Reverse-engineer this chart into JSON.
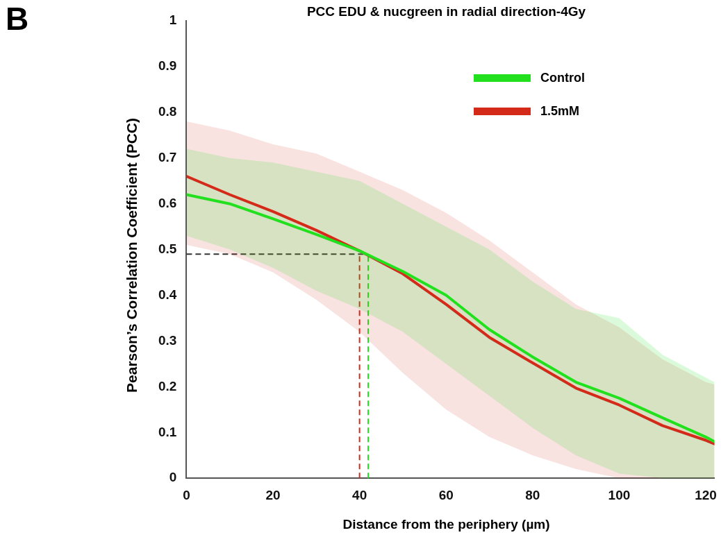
{
  "chart_data": {
    "type": "line",
    "title": "PCC EDU & nucgreen in radial direction-4Gy",
    "xlabel": "Distance from the periphery (µm)",
    "ylabel": "Pearson’s Correlation Coefficient (PCC)",
    "annotations": [
      "B"
    ],
    "series": [
      {
        "name": "Control",
        "color": "#22e01e",
        "x": [
          0,
          10,
          20,
          30,
          40,
          50,
          60,
          70,
          80,
          90,
          100,
          110,
          120,
          122
        ],
        "values": [
          0.62,
          0.6,
          0.567,
          0.533,
          0.497,
          0.452,
          0.4,
          0.325,
          0.265,
          0.21,
          0.175,
          0.132,
          0.09,
          0.08
        ],
        "lower": [
          0.53,
          0.5,
          0.46,
          0.41,
          0.37,
          0.32,
          0.25,
          0.18,
          0.11,
          0.05,
          0.01,
          0,
          0,
          0
        ],
        "upper": [
          0.72,
          0.7,
          0.69,
          0.67,
          0.65,
          0.6,
          0.55,
          0.5,
          0.43,
          0.37,
          0.35,
          0.27,
          0.22,
          0.21
        ]
      },
      {
        "name": "1.5mM",
        "color": "#d42a1a",
        "x": [
          0,
          10,
          20,
          30,
          40,
          50,
          60,
          70,
          80,
          90,
          100,
          110,
          120,
          122
        ],
        "values": [
          0.66,
          0.62,
          0.583,
          0.542,
          0.497,
          0.447,
          0.38,
          0.308,
          0.252,
          0.197,
          0.16,
          0.115,
          0.083,
          0.075
        ],
        "lower": [
          0.51,
          0.49,
          0.45,
          0.39,
          0.32,
          0.23,
          0.15,
          0.09,
          0.05,
          0.02,
          0,
          0,
          0,
          0
        ],
        "upper": [
          0.78,
          0.76,
          0.73,
          0.71,
          0.67,
          0.63,
          0.58,
          0.52,
          0.45,
          0.38,
          0.33,
          0.26,
          0.21,
          0.205
        ]
      }
    ],
    "ref_lines": [
      {
        "axis": "y",
        "value": 0.49,
        "color": "#333333",
        "line_style": "dashed"
      },
      {
        "axis": "x",
        "value": 40,
        "color": "#d42a1a",
        "line_style": "dashed"
      },
      {
        "axis": "x",
        "value": 42,
        "color": "#22e01e",
        "line_style": "dashed"
      }
    ],
    "xlim": [
      0,
      122
    ],
    "ylim": [
      0,
      1
    ],
    "xticks": [
      0,
      20,
      40,
      60,
      80,
      100,
      120
    ],
    "yticks": [
      0,
      0.1,
      0.2,
      0.3,
      0.4,
      0.5,
      0.6,
      0.7,
      0.8,
      0.9,
      1
    ],
    "grid": false,
    "legend": "top right",
    "marker": "none",
    "line_style": "solid"
  }
}
